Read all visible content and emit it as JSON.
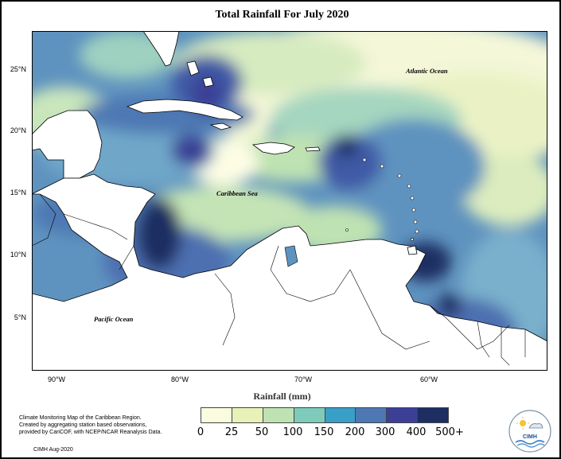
{
  "title": "Total Rainfall For July 2020",
  "legend": {
    "title": "Rainfall (mm)",
    "ticks": [
      "0",
      "25",
      "50",
      "100",
      "150",
      "200",
      "300",
      "400",
      "500+"
    ],
    "colors": [
      "#fbfbe0",
      "#e7f1b8",
      "#bfe2b2",
      "#7ecbbb",
      "#3a9fc6",
      "#4e78b3",
      "#3b3f96",
      "#1c2e62"
    ]
  },
  "axes": {
    "lat_labels": [
      "25°N",
      "20°N",
      "15°N",
      "10°N",
      "5°N"
    ],
    "lon_labels": [
      "90°W",
      "80°W",
      "70°W",
      "60°W"
    ]
  },
  "labels": {
    "atlantic": "Atlantic Ocean",
    "caribbean": "Caribbean Sea",
    "pacific": "Pacific Ocean"
  },
  "credit": {
    "lines": [
      "Climate Monitoring Map of the Caribbean Region.",
      "Created by aggregating station based observations,",
      "provided by CariCOF, with NCEP/NCAR Reanalysis Data."
    ],
    "date": "CIMH Aug-2020"
  },
  "logo": {
    "text": "CIMH"
  }
}
